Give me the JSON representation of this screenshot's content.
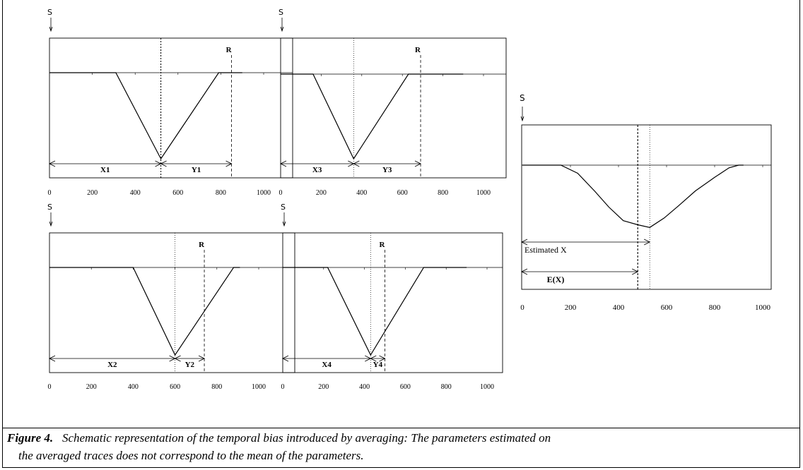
{
  "source_label": "S",
  "receiver_label": "R",
  "panels": [
    {
      "id": "p1",
      "x_label": "X1",
      "y_label": "Y1",
      "ticks": [
        "0",
        "200",
        "400",
        "600",
        "800",
        "1000"
      ],
      "tick_values": [
        0,
        200,
        400,
        600,
        800,
        1000
      ],
      "trace": [
        [
          0,
          0
        ],
        [
          310,
          0
        ],
        [
          520,
          -1
        ],
        [
          790,
          0
        ],
        [
          900,
          0
        ]
      ],
      "peak": 520,
      "r": 850
    },
    {
      "id": "p2",
      "x_label": "X3",
      "y_label": "Y3",
      "ticks": [
        "0",
        "200",
        "400",
        "600",
        "800",
        "1000"
      ],
      "tick_values": [
        0,
        200,
        400,
        600,
        800,
        1000
      ],
      "trace": [
        [
          0,
          0
        ],
        [
          160,
          0
        ],
        [
          360,
          -1
        ],
        [
          630,
          0
        ],
        [
          900,
          0
        ]
      ],
      "peak": 360,
      "r": 690
    },
    {
      "id": "p3",
      "x_label": "X2",
      "y_label": "Y2",
      "ticks": [
        "0",
        "200",
        "400",
        "600",
        "800",
        "1000"
      ],
      "tick_values": [
        0,
        200,
        400,
        600,
        800,
        1000
      ],
      "trace": [
        [
          0,
          0
        ],
        [
          400,
          0
        ],
        [
          600,
          -1
        ],
        [
          880,
          0
        ],
        [
          910,
          0
        ]
      ],
      "peak": 600,
      "r": 740
    },
    {
      "id": "p4",
      "x_label": "X4",
      "y_label": "Y4",
      "ticks": [
        "0",
        "200",
        "400",
        "600",
        "800",
        "1000"
      ],
      "tick_values": [
        0,
        200,
        400,
        600,
        800,
        1000
      ],
      "trace": [
        [
          0,
          0
        ],
        [
          220,
          0
        ],
        [
          430,
          -1
        ],
        [
          690,
          0
        ],
        [
          900,
          0
        ]
      ],
      "peak": 430,
      "r": 500
    }
  ],
  "average_panel": {
    "estimated_label": "Estimated X",
    "expected_label": "E(X)",
    "ticks": [
      "0",
      "200",
      "400",
      "600",
      "800",
      "1000"
    ],
    "tick_values": [
      0,
      200,
      400,
      600,
      800,
      1000
    ],
    "estimated_x": 530,
    "expected_x": 480,
    "trace": [
      [
        0,
        0
      ],
      [
        160,
        0
      ],
      [
        230,
        -0.12
      ],
      [
        300,
        -0.38
      ],
      [
        360,
        -0.62
      ],
      [
        420,
        -0.82
      ],
      [
        480,
        -0.88
      ],
      [
        530,
        -0.92
      ],
      [
        590,
        -0.78
      ],
      [
        650,
        -0.6
      ],
      [
        720,
        -0.38
      ],
      [
        800,
        -0.18
      ],
      [
        860,
        -0.04
      ],
      [
        900,
        0
      ],
      [
        920,
        0
      ]
    ]
  },
  "caption": {
    "label": "Figure 4.",
    "text_line1": "Schematic representation of the temporal bias introduced by averaging: The parameters estimated on",
    "text_line2": "the averaged traces does not correspond to   the mean of the parameters."
  }
}
